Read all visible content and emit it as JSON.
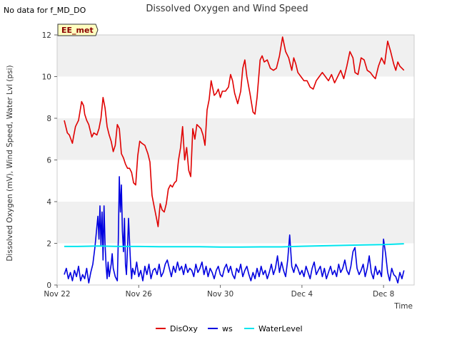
{
  "header": {
    "no_data_note": "No data for f_MD_DO"
  },
  "badge": {
    "label": "EE_met"
  },
  "chart_data": {
    "type": "line",
    "title": "Dissolved Oxygen and Wind Speed",
    "xlabel": "Time",
    "ylabel": "Dissolved Oxygen (mV), Wind Speed, Water Lvl (psi)",
    "xlim": [
      0,
      17.5
    ],
    "ylim": [
      0,
      12
    ],
    "x_tick_values": [
      0,
      4,
      8,
      12,
      16
    ],
    "x_tick_labels": [
      "Nov 22",
      "Nov 26",
      "Nov 30",
      "Dec 4",
      "Dec 8"
    ],
    "y_tick_values": [
      0,
      2,
      4,
      6,
      8,
      10,
      12
    ],
    "y_tick_labels": [
      "0",
      "2",
      "4",
      "6",
      "8",
      "10",
      "12"
    ],
    "grid": "alternating horizontal bands",
    "legend_position": "bottom-center",
    "series": [
      {
        "name": "DisOxy",
        "color": "#e00000",
        "x": [
          0.35,
          0.5,
          0.6,
          0.75,
          0.8,
          0.9,
          1.05,
          1.2,
          1.3,
          1.35,
          1.45,
          1.55,
          1.7,
          1.8,
          1.95,
          2.05,
          2.15,
          2.25,
          2.35,
          2.45,
          2.55,
          2.65,
          2.75,
          2.85,
          2.95,
          3.05,
          3.15,
          3.25,
          3.35,
          3.45,
          3.55,
          3.65,
          3.75,
          3.85,
          3.95,
          4.05,
          4.15,
          4.3,
          4.45,
          4.55,
          4.65,
          4.75,
          4.85,
          4.95,
          5.05,
          5.15,
          5.25,
          5.35,
          5.45,
          5.55,
          5.65,
          5.75,
          5.85,
          5.95,
          6.05,
          6.15,
          6.25,
          6.35,
          6.45,
          6.55,
          6.65,
          6.75,
          6.85,
          6.95,
          7.05,
          7.15,
          7.25,
          7.35,
          7.45,
          7.55,
          7.7,
          7.8,
          7.9,
          8.0,
          8.1,
          8.25,
          8.4,
          8.5,
          8.6,
          8.7,
          8.85,
          9.0,
          9.1,
          9.2,
          9.3,
          9.45,
          9.6,
          9.7,
          9.8,
          9.95,
          10.05,
          10.15,
          10.3,
          10.45,
          10.6,
          10.75,
          10.9,
          11.05,
          11.2,
          11.35,
          11.5,
          11.6,
          11.7,
          11.8,
          11.95,
          12.1,
          12.25,
          12.4,
          12.55,
          12.7,
          12.85,
          13.0,
          13.15,
          13.3,
          13.45,
          13.6,
          13.75,
          13.9,
          14.05,
          14.2,
          14.35,
          14.5,
          14.6,
          14.75,
          14.9,
          15.05,
          15.2,
          15.35,
          15.5,
          15.6,
          15.75,
          15.9,
          16.05,
          16.2,
          16.35,
          16.5,
          16.6,
          16.7,
          16.8,
          16.9,
          17.0
        ],
        "y": [
          7.9,
          7.3,
          7.2,
          6.8,
          7.1,
          7.6,
          7.9,
          8.8,
          8.6,
          8.2,
          7.9,
          7.7,
          7.1,
          7.3,
          7.2,
          7.5,
          8.0,
          9.0,
          8.5,
          7.6,
          7.2,
          6.9,
          6.4,
          6.7,
          7.7,
          7.5,
          6.3,
          6.1,
          5.8,
          5.6,
          5.6,
          5.4,
          4.9,
          4.8,
          6.2,
          6.9,
          6.8,
          6.7,
          6.3,
          5.9,
          4.3,
          3.8,
          3.3,
          2.8,
          3.9,
          3.6,
          3.5,
          3.9,
          4.6,
          4.8,
          4.7,
          4.9,
          5.0,
          6.0,
          6.6,
          7.6,
          6.0,
          6.6,
          5.5,
          5.2,
          7.5,
          7.0,
          7.7,
          7.6,
          7.5,
          7.2,
          6.7,
          8.4,
          8.9,
          9.8,
          9.1,
          9.2,
          9.4,
          9.0,
          9.3,
          9.3,
          9.5,
          10.1,
          9.8,
          9.2,
          8.7,
          9.3,
          10.4,
          10.8,
          10.0,
          9.2,
          8.3,
          8.2,
          9.0,
          10.8,
          11.0,
          10.7,
          10.8,
          10.4,
          10.3,
          10.4,
          11.0,
          11.9,
          11.2,
          10.9,
          10.3,
          10.9,
          10.6,
          10.2,
          10.0,
          9.8,
          9.8,
          9.5,
          9.4,
          9.8,
          10.0,
          10.2,
          10.0,
          9.8,
          10.1,
          9.7,
          10.0,
          10.3,
          9.9,
          10.5,
          11.2,
          10.9,
          10.2,
          10.1,
          10.9,
          10.8,
          10.3,
          10.2,
          10.0,
          9.9,
          10.5,
          10.9,
          10.6,
          11.7,
          11.2,
          10.6,
          10.3,
          10.7,
          10.5,
          10.4,
          10.3
        ],
        "source": "estimated"
      },
      {
        "name": "ws",
        "color": "#0000e0",
        "x": [
          0.35,
          0.45,
          0.55,
          0.65,
          0.75,
          0.85,
          0.95,
          1.05,
          1.15,
          1.25,
          1.35,
          1.45,
          1.55,
          1.65,
          1.75,
          1.85,
          1.95,
          2.0,
          2.05,
          2.1,
          2.15,
          2.2,
          2.25,
          2.3,
          2.35,
          2.4,
          2.45,
          2.5,
          2.55,
          2.6,
          2.65,
          2.7,
          2.75,
          2.85,
          2.95,
          3.0,
          3.05,
          3.1,
          3.15,
          3.2,
          3.25,
          3.3,
          3.35,
          3.4,
          3.45,
          3.5,
          3.55,
          3.6,
          3.65,
          3.7,
          3.8,
          3.9,
          4.0,
          4.1,
          4.2,
          4.3,
          4.4,
          4.5,
          4.6,
          4.7,
          4.8,
          4.9,
          5.0,
          5.1,
          5.2,
          5.3,
          5.4,
          5.5,
          5.6,
          5.7,
          5.8,
          5.9,
          6.0,
          6.1,
          6.2,
          6.3,
          6.4,
          6.5,
          6.6,
          6.7,
          6.8,
          6.9,
          7.0,
          7.1,
          7.2,
          7.3,
          7.4,
          7.5,
          7.6,
          7.7,
          7.8,
          7.9,
          8.0,
          8.1,
          8.2,
          8.3,
          8.4,
          8.5,
          8.6,
          8.7,
          8.8,
          8.9,
          9.0,
          9.1,
          9.2,
          9.3,
          9.4,
          9.5,
          9.6,
          9.7,
          9.8,
          9.9,
          10.0,
          10.1,
          10.2,
          10.3,
          10.4,
          10.5,
          10.6,
          10.7,
          10.8,
          10.9,
          11.0,
          11.1,
          11.2,
          11.3,
          11.4,
          11.5,
          11.6,
          11.7,
          11.8,
          11.9,
          12.0,
          12.1,
          12.2,
          12.3,
          12.4,
          12.5,
          12.6,
          12.7,
          12.8,
          12.9,
          13.0,
          13.1,
          13.2,
          13.3,
          13.4,
          13.5,
          13.6,
          13.7,
          13.8,
          13.9,
          14.0,
          14.1,
          14.2,
          14.3,
          14.4,
          14.5,
          14.6,
          14.7,
          14.8,
          14.9,
          15.0,
          15.1,
          15.2,
          15.3,
          15.4,
          15.5,
          15.6,
          15.7,
          15.8,
          15.9,
          16.0,
          16.1,
          16.2,
          16.3,
          16.4,
          16.5,
          16.6,
          16.7,
          16.8,
          16.9,
          17.0
        ],
        "y": [
          0.5,
          0.8,
          0.3,
          0.6,
          0.2,
          0.7,
          0.4,
          0.9,
          0.2,
          0.5,
          0.3,
          0.8,
          0.1,
          0.6,
          1.0,
          1.8,
          2.8,
          3.3,
          2.2,
          3.8,
          1.9,
          3.5,
          1.2,
          3.8,
          2.0,
          0.9,
          0.3,
          1.1,
          0.4,
          0.7,
          1.0,
          1.5,
          0.8,
          0.4,
          0.2,
          2.2,
          5.2,
          3.5,
          4.8,
          2.6,
          1.6,
          3.2,
          1.0,
          0.5,
          1.8,
          3.2,
          2.1,
          1.0,
          0.3,
          0.8,
          0.5,
          1.1,
          0.4,
          0.7,
          0.2,
          0.9,
          0.5,
          1.0,
          0.3,
          0.7,
          0.8,
          0.5,
          1.0,
          0.4,
          0.6,
          1.0,
          1.2,
          0.8,
          0.4,
          0.9,
          0.6,
          1.1,
          0.7,
          0.9,
          0.5,
          1.0,
          0.6,
          0.8,
          0.7,
          0.4,
          1.0,
          0.6,
          0.8,
          1.1,
          0.5,
          0.9,
          0.4,
          0.8,
          0.6,
          0.3,
          0.7,
          0.9,
          0.5,
          0.4,
          0.8,
          1.0,
          0.6,
          0.9,
          0.5,
          0.3,
          0.8,
          0.6,
          1.0,
          0.4,
          0.7,
          0.9,
          0.5,
          0.2,
          0.6,
          0.3,
          0.8,
          0.4,
          0.9,
          0.5,
          0.7,
          0.3,
          0.6,
          1.0,
          0.5,
          0.8,
          1.4,
          0.6,
          1.1,
          0.7,
          0.4,
          1.2,
          2.4,
          0.9,
          0.6,
          1.0,
          0.8,
          0.5,
          0.7,
          0.4,
          0.9,
          0.6,
          0.3,
          0.8,
          1.1,
          0.5,
          0.7,
          0.9,
          0.4,
          0.8,
          0.3,
          0.6,
          0.9,
          0.5,
          0.7,
          0.4,
          1.0,
          0.6,
          0.8,
          1.2,
          0.7,
          0.5,
          0.9,
          1.6,
          1.8,
          0.8,
          0.5,
          0.7,
          1.0,
          0.4,
          0.8,
          1.4,
          0.6,
          0.3,
          0.9,
          0.5,
          0.7,
          0.4,
          2.2,
          1.5,
          0.6,
          0.2,
          0.8,
          0.5,
          0.4,
          0.1,
          0.6,
          0.3,
          0.7
        ],
        "source": "estimated"
      },
      {
        "name": "WaterLevel",
        "color": "#00e5ee",
        "x": [
          0.35,
          1.0,
          2.0,
          3.0,
          4.0,
          5.0,
          6.0,
          7.0,
          8.0,
          9.0,
          10.0,
          11.0,
          12.0,
          13.0,
          14.0,
          15.0,
          16.0,
          16.5,
          17.0
        ],
        "y": [
          1.85,
          1.85,
          1.87,
          1.85,
          1.85,
          1.84,
          1.84,
          1.84,
          1.82,
          1.82,
          1.83,
          1.83,
          1.86,
          1.88,
          1.9,
          1.92,
          1.94,
          1.96,
          1.98
        ],
        "source": "estimated"
      }
    ]
  }
}
